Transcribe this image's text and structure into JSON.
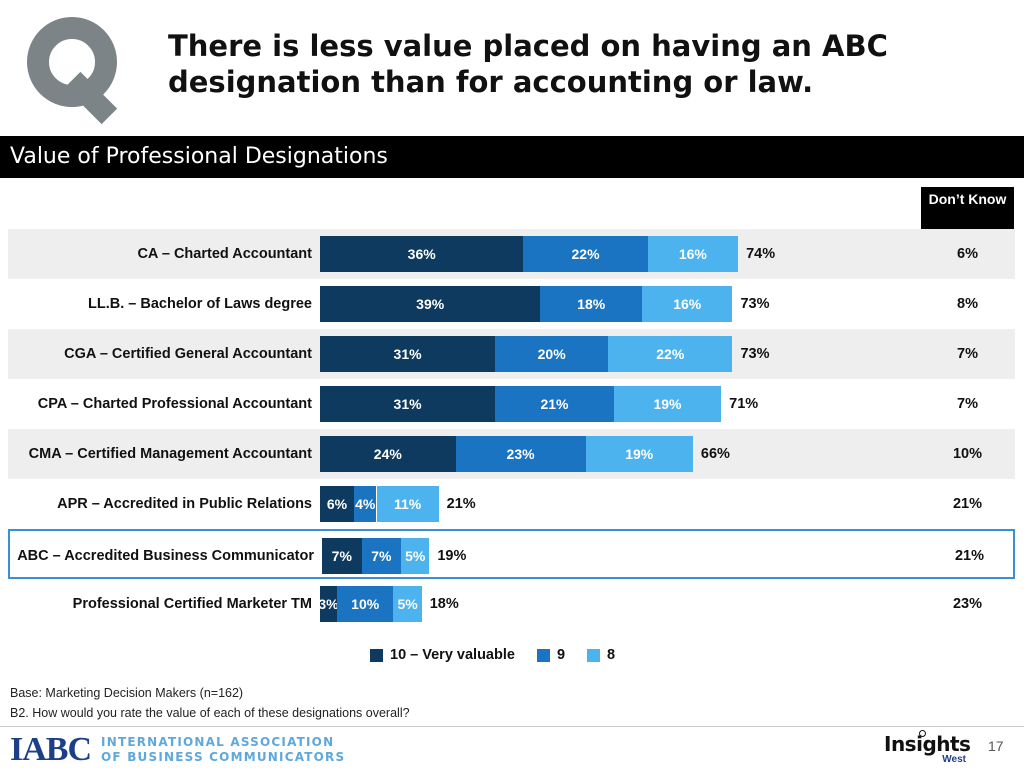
{
  "title": "There is less value placed on having an ABC designation than for accounting or law.",
  "section_title": "Value of Professional Designations",
  "dont_know_header": "Don’t Know",
  "colors": {
    "series_10": "#0e3a5f",
    "series_9": "#1a74c2",
    "series_8": "#4db3ee",
    "banner": "#000000",
    "row_shade": "#eeeeee",
    "highlight_border": "#3a8fd6"
  },
  "chart_data": {
    "type": "bar",
    "orientation": "horizontal",
    "stacked": true,
    "categories": [
      "CA – Charted Accountant",
      "LL.B. – Bachelor of Laws degree",
      "CGA – Certified General Accountant",
      "CPA – Charted Professional Accountant",
      "CMA – Certified Management Accountant",
      "APR – Accredited in Public Relations",
      "ABC – Accredited Business Communicator",
      "Professional Certified Marketer TM"
    ],
    "series": [
      {
        "name": "10 – Very valuable",
        "values": [
          36,
          39,
          31,
          31,
          24,
          6,
          7,
          3
        ],
        "labels": [
          "36%",
          "39%",
          "31%",
          "31%",
          "24%",
          "6%",
          "7%",
          "3%"
        ]
      },
      {
        "name": "9",
        "values": [
          22,
          18,
          20,
          21,
          23,
          4,
          7,
          10
        ],
        "labels": [
          "22%",
          "18%",
          "20%",
          "21%",
          "23%",
          "4%",
          "7%",
          "10%"
        ]
      },
      {
        "name": "8",
        "values": [
          16,
          16,
          22,
          19,
          19,
          11,
          5,
          5
        ],
        "labels": [
          "16%",
          "16%",
          "22%",
          "19%",
          "19%",
          "11%",
          "5%",
          "5%"
        ]
      }
    ],
    "totals": [
      "74%",
      "73%",
      "73%",
      "71%",
      "66%",
      "21%",
      "19%",
      "18%"
    ],
    "dont_know": [
      "6%",
      "8%",
      "7%",
      "7%",
      "10%",
      "21%",
      "21%",
      "23%"
    ],
    "highlighted_category": "ABC – Accredited Business Communicator",
    "legend_position": "bottom"
  },
  "base_note": "Base: Marketing Decision Makers (n=162)",
  "question_note": "B2. How would you rate the value of each of these designations overall?",
  "footer": {
    "iabc_mark": "IABC",
    "iabc_name_line1": "INTERNATIONAL ASSOCIATION",
    "iabc_name_line2": "OF BUSINESS COMMUNICATORS",
    "insights_main": "Insights",
    "insights_sub": "West",
    "page_number": "17"
  }
}
